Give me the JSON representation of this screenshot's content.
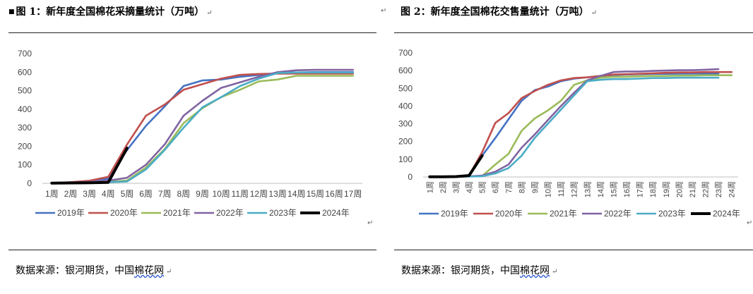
{
  "panels": [
    {
      "title": "图 1：新年度全国棉花采摘量统计（万吨）",
      "source_prefix": "数据来源：银河期货，中国",
      "source_link": "棉花网",
      "chart_data": {
        "type": "line",
        "title": "",
        "xlabel": "",
        "ylabel": "",
        "ylim": [
          0,
          700
        ],
        "yticks": [
          0,
          100,
          200,
          300,
          400,
          500,
          600,
          700
        ],
        "grid": false,
        "legend": "bottom",
        "categories": [
          "1周",
          "2周",
          "3周",
          "4周",
          "5周",
          "6周",
          "7周",
          "8周",
          "9周",
          "10周",
          "11周",
          "12周",
          "13周",
          "14周",
          "15周",
          "16周",
          "17周"
        ],
        "series": [
          {
            "name": "2019年",
            "color": "#4472C4",
            "values": [
              2,
              6,
              12,
              25,
              180,
              310,
              415,
              525,
              555,
              560,
              575,
              585,
              595,
              598,
              600,
              600,
              600
            ]
          },
          {
            "name": "2020年",
            "color": "#C0504D",
            "values": [
              2,
              6,
              14,
              35,
              210,
              365,
              425,
              505,
              535,
              565,
              585,
              590,
              592,
              592,
              592,
              592,
              592
            ]
          },
          {
            "name": "2021年",
            "color": "#9BBB59",
            "values": [
              1,
              3,
              5,
              8,
              15,
              85,
              185,
              325,
              405,
              465,
              505,
              550,
              560,
              580,
              580,
              580,
              580
            ]
          },
          {
            "name": "2022年",
            "color": "#8064A2",
            "values": [
              1,
              4,
              8,
              15,
              30,
              100,
              210,
              365,
              445,
              515,
              545,
              575,
              600,
              610,
              612,
              612,
              612
            ]
          },
          {
            "name": "2023年",
            "color": "#4BACC6",
            "values": [
              1,
              3,
              5,
              6,
              10,
              75,
              180,
              300,
              410,
              465,
              525,
              565,
              595,
              598,
              598,
              598,
              598
            ]
          },
          {
            "name": "2024年",
            "color": "#000000",
            "values": [
              1,
              2,
              3,
              5,
              190,
              null,
              null,
              null,
              null,
              null,
              null,
              null,
              null,
              null,
              null,
              null,
              null
            ]
          }
        ]
      }
    },
    {
      "title": "图 2：新年度全国棉花交售量统计（万吨）",
      "source_prefix": "数据来源：银河期货，中国",
      "source_link": "棉花网",
      "chart_data": {
        "type": "line",
        "title": "",
        "xlabel": "",
        "ylabel": "",
        "ylim": [
          0,
          700
        ],
        "yticks": [
          0,
          100,
          200,
          300,
          400,
          500,
          600,
          700
        ],
        "grid": false,
        "legend": "bottom",
        "categories": [
          "1周",
          "2周",
          "3周",
          "4周",
          "5周",
          "6周",
          "7周",
          "8周",
          "9周",
          "10周",
          "11周",
          "12周",
          "13周",
          "14周",
          "15周",
          "16周",
          "17周",
          "18周",
          "19周",
          "20周",
          "21周",
          "22周",
          "23周",
          "24周"
        ],
        "series": [
          {
            "name": "2019年",
            "color": "#4472C4",
            "values": [
              2,
              2,
              3,
              5,
              120,
              220,
              325,
              430,
              490,
              510,
              540,
              555,
              562,
              570,
              575,
              578,
              580,
              582,
              582,
              583,
              583,
              584,
              584,
              null
            ]
          },
          {
            "name": "2020年",
            "color": "#C0504D",
            "values": [
              2,
              2,
              3,
              8,
              140,
              305,
              360,
              445,
              485,
              520,
              545,
              558,
              562,
              570,
              578,
              580,
              582,
              585,
              588,
              590,
              590,
              592,
              592,
              592
            ]
          },
          {
            "name": "2021年",
            "color": "#9BBB59",
            "values": [
              1,
              1,
              2,
              3,
              5,
              70,
              130,
              260,
              330,
              375,
              430,
              520,
              545,
              560,
              565,
              565,
              568,
              570,
              570,
              572,
              572,
              574,
              574,
              574
            ]
          },
          {
            "name": "2022年",
            "color": "#8064A2",
            "values": [
              1,
              1,
              2,
              3,
              8,
              30,
              70,
              165,
              240,
              320,
              400,
              475,
              545,
              570,
              592,
              595,
              595,
              598,
              600,
              602,
              602,
              605,
              608,
              null
            ]
          },
          {
            "name": "2023年",
            "color": "#4BACC6",
            "values": [
              1,
              1,
              1,
              2,
              4,
              20,
              50,
              120,
              220,
              300,
              380,
              460,
              540,
              548,
              552,
              552,
              555,
              558,
              558,
              560,
              560,
              560,
              560,
              null
            ]
          },
          {
            "name": "2024年",
            "color": "#000000",
            "values": [
              1,
              1,
              2,
              8,
              120,
              null,
              null,
              null,
              null,
              null,
              null,
              null,
              null,
              null,
              null,
              null,
              null,
              null,
              null,
              null,
              null,
              null,
              null,
              null
            ]
          }
        ]
      }
    }
  ]
}
